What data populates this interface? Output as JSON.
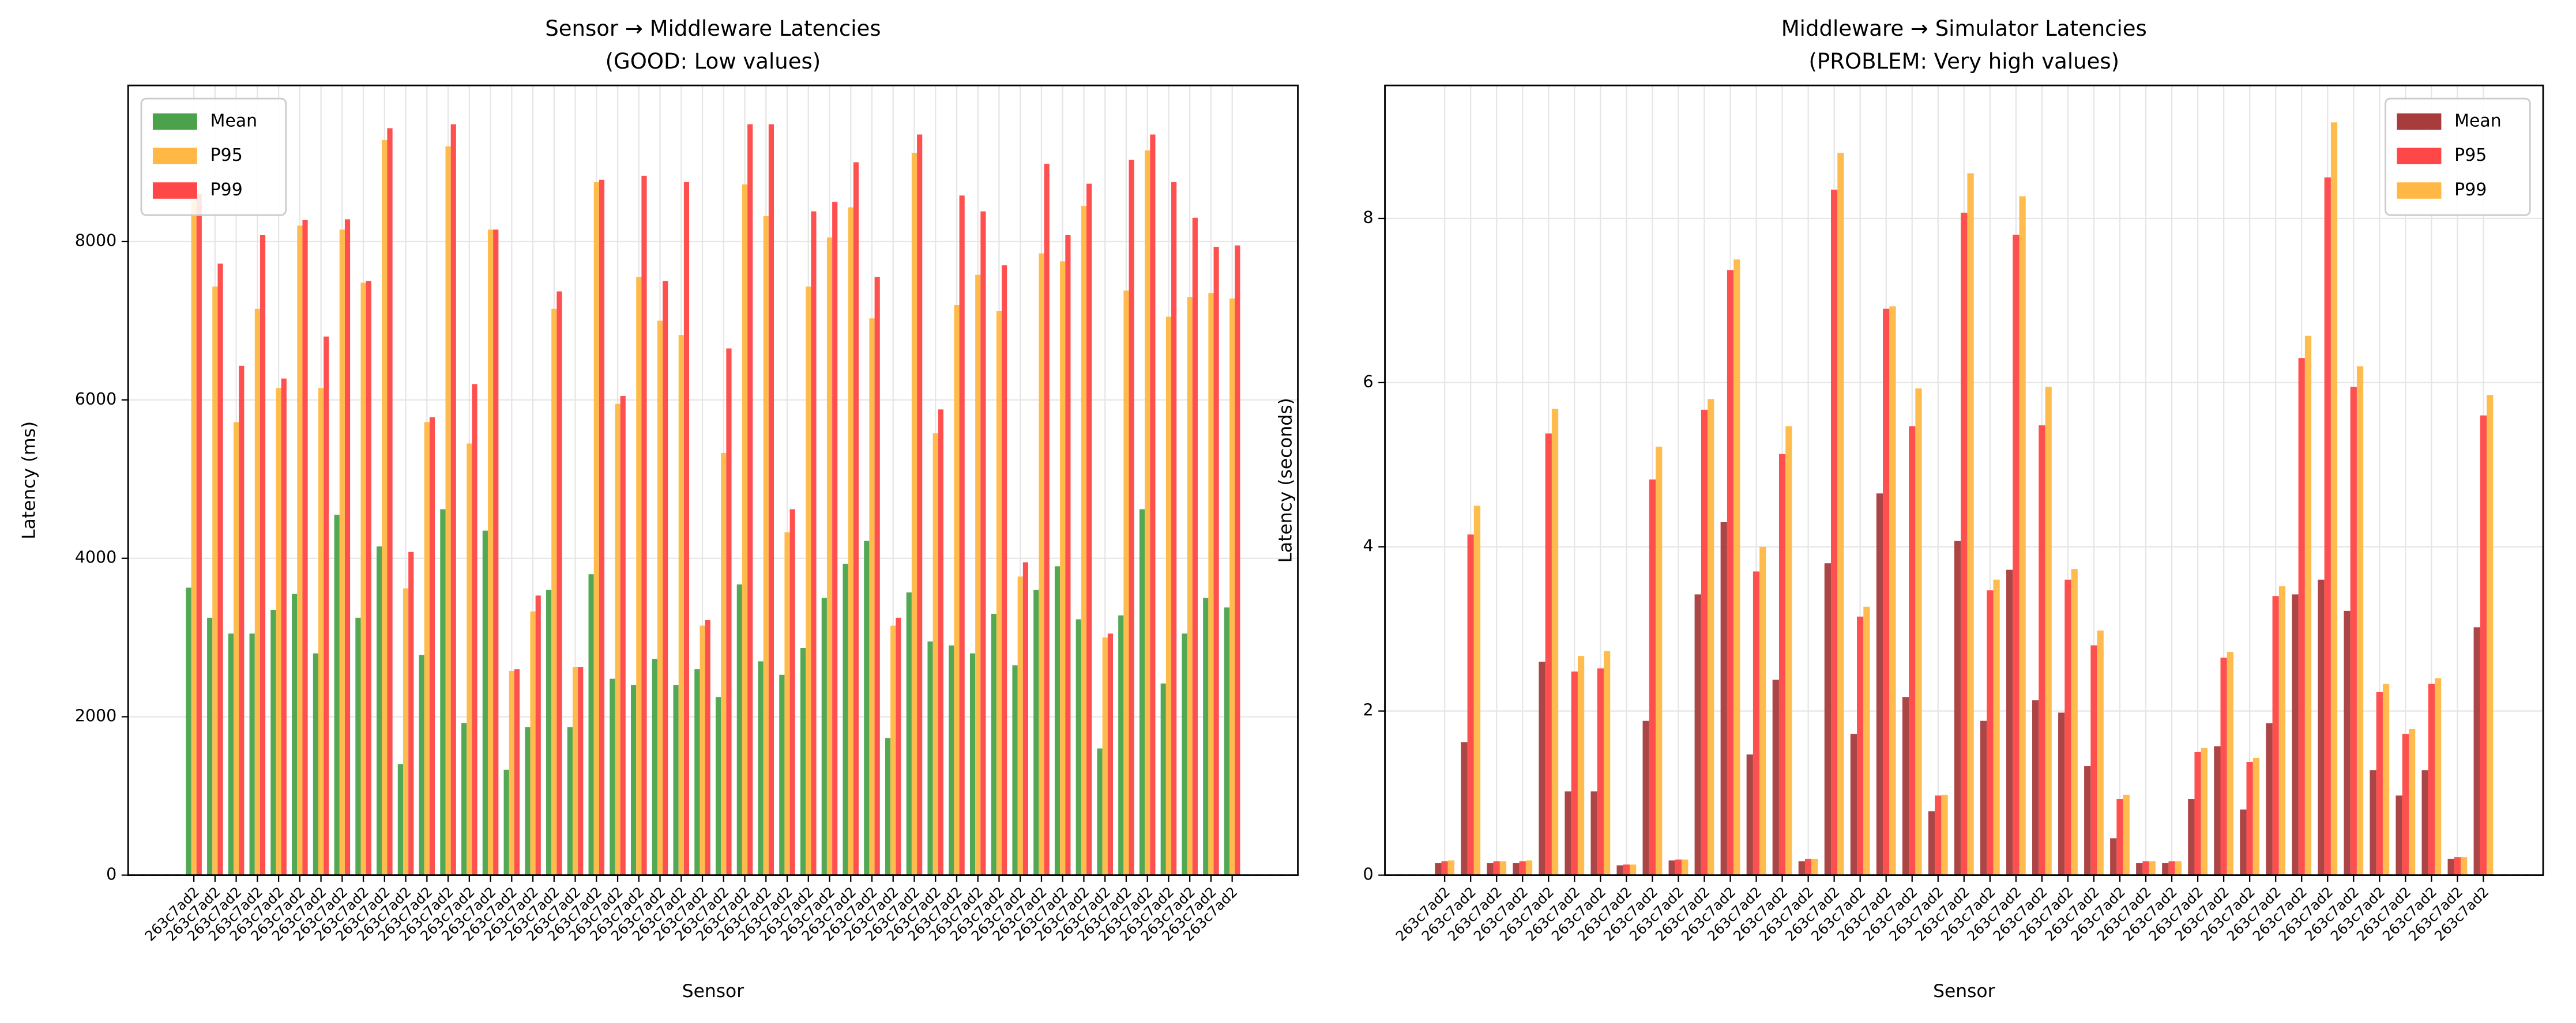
{
  "chart_data": [
    {
      "type": "bar",
      "title": "Sensor → Middleware Latencies",
      "subtitle": "(GOOD: Low values)",
      "x_label": "Sensor",
      "y_label": "Latency (ms)",
      "categories": [
        "263c7ad2",
        "263c7ad2",
        "263c7ad2",
        "263c7ad2",
        "263c7ad2",
        "263c7ad2",
        "263c7ad2",
        "263c7ad2",
        "263c7ad2",
        "263c7ad2",
        "263c7ad2",
        "263c7ad2",
        "263c7ad2",
        "263c7ad2",
        "263c7ad2",
        "263c7ad2",
        "263c7ad2",
        "263c7ad2",
        "263c7ad2",
        "263c7ad2",
        "263c7ad2",
        "263c7ad2",
        "263c7ad2",
        "263c7ad2",
        "263c7ad2",
        "263c7ad2",
        "263c7ad2",
        "263c7ad2",
        "263c7ad2",
        "263c7ad2",
        "263c7ad2",
        "263c7ad2",
        "263c7ad2",
        "263c7ad2",
        "263c7ad2",
        "263c7ad2",
        "263c7ad2",
        "263c7ad2",
        "263c7ad2",
        "263c7ad2",
        "263c7ad2",
        "263c7ad2",
        "263c7ad2",
        "263c7ad2",
        "263c7ad2",
        "263c7ad2",
        "263c7ad2",
        "263c7ad2",
        "263c7ad2",
        "263c7ad2"
      ],
      "series": [
        {
          "name": "Mean",
          "color": "#4aa34a",
          "values": [
            3630,
            3250,
            3050,
            3050,
            3350,
            3550,
            2800,
            4550,
            3250,
            4150,
            1400,
            2780,
            4620,
            1920,
            4350,
            1330,
            1870,
            3600,
            1870,
            3800,
            2480,
            2400,
            2730,
            2400,
            2600,
            2250,
            3670,
            2700,
            2530,
            2870,
            3500,
            3930,
            4220,
            1730,
            3570,
            2950,
            2900,
            2800,
            3300,
            2650,
            3600,
            3900,
            3230,
            1600,
            3280,
            4620,
            2420,
            3050,
            3500,
            3380
          ]
        },
        {
          "name": "P95",
          "color": "#ffb845",
          "values": [
            8500,
            7430,
            5720,
            7150,
            6150,
            8200,
            6150,
            8150,
            7480,
            9280,
            3620,
            5720,
            9200,
            5450,
            8150,
            2580,
            3330,
            7150,
            2630,
            8750,
            5950,
            7550,
            7000,
            6820,
            3150,
            5330,
            8720,
            8320,
            4330,
            7430,
            8050,
            8430,
            7030,
            3150,
            9120,
            5580,
            7200,
            7580,
            7120,
            3770,
            7850,
            7750,
            8450,
            3000,
            7380,
            9150,
            7050,
            7300,
            7350,
            7280
          ]
        },
        {
          "name": "P99",
          "color": "#ff4747",
          "values": [
            8600,
            7720,
            6430,
            8080,
            6270,
            8270,
            6800,
            8280,
            7500,
            9430,
            4080,
            5780,
            9480,
            6200,
            8150,
            2600,
            3530,
            7370,
            2630,
            8780,
            6050,
            8830,
            7500,
            8750,
            3220,
            6650,
            9480,
            9480,
            4620,
            8380,
            8500,
            9000,
            7550,
            3250,
            9350,
            5880,
            8580,
            8380,
            7700,
            3950,
            8980,
            8080,
            8730,
            3050,
            9030,
            9350,
            8750,
            8300,
            7930,
            7950
          ]
        }
      ],
      "ylim": [
        0,
        9970
      ],
      "yticks": [
        0,
        2000,
        4000,
        6000,
        8000
      ],
      "grid": true,
      "legend": "upper left"
    },
    {
      "type": "bar",
      "title": "Middleware → Simulator Latencies",
      "subtitle": "(PROBLEM: Very high values)",
      "x_label": "Sensor",
      "y_label": "Latency (seconds)",
      "categories": [
        "263c7ad2",
        "263c7ad2",
        "263c7ad2",
        "263c7ad2",
        "263c7ad2",
        "263c7ad2",
        "263c7ad2",
        "263c7ad2",
        "263c7ad2",
        "263c7ad2",
        "263c7ad2",
        "263c7ad2",
        "263c7ad2",
        "263c7ad2",
        "263c7ad2",
        "263c7ad2",
        "263c7ad2",
        "263c7ad2",
        "263c7ad2",
        "263c7ad2",
        "263c7ad2",
        "263c7ad2",
        "263c7ad2",
        "263c7ad2",
        "263c7ad2",
        "263c7ad2",
        "263c7ad2",
        "263c7ad2",
        "263c7ad2",
        "263c7ad2",
        "263c7ad2",
        "263c7ad2",
        "263c7ad2",
        "263c7ad2",
        "263c7ad2",
        "263c7ad2",
        "263c7ad2",
        "263c7ad2",
        "263c7ad2",
        "263c7ad2",
        "263c7ad2"
      ],
      "series": [
        {
          "name": "Mean",
          "color": "#a83c3c",
          "values": [
            0.15,
            1.62,
            0.15,
            0.15,
            2.6,
            1.02,
            1.02,
            0.12,
            1.88,
            0.18,
            3.42,
            4.3,
            1.47,
            2.38,
            0.17,
            3.8,
            1.72,
            4.65,
            2.17,
            0.78,
            4.07,
            1.88,
            3.72,
            2.13,
            1.98,
            1.33,
            0.45,
            0.15,
            0.15,
            0.93,
            1.57,
            0.8,
            1.85,
            3.42,
            3.6,
            3.22,
            1.28,
            0.97,
            1.28,
            0.2,
            3.02
          ]
        },
        {
          "name": "P95",
          "color": "#ff4747",
          "values": [
            0.17,
            4.15,
            0.17,
            0.17,
            5.38,
            2.48,
            2.52,
            0.13,
            4.82,
            0.19,
            5.67,
            7.37,
            3.7,
            5.13,
            0.2,
            8.35,
            3.15,
            6.9,
            5.47,
            0.97,
            8.07,
            3.47,
            7.8,
            5.48,
            3.6,
            2.8,
            0.93,
            0.17,
            0.17,
            1.5,
            2.65,
            1.38,
            3.4,
            6.3,
            8.5,
            5.95,
            2.23,
            1.72,
            2.33,
            0.22,
            5.6
          ]
        },
        {
          "name": "P99",
          "color": "#ffb845",
          "values": [
            0.18,
            4.5,
            0.17,
            0.18,
            5.68,
            2.67,
            2.73,
            0.13,
            5.22,
            0.19,
            5.8,
            7.5,
            4.0,
            5.47,
            0.2,
            8.8,
            3.27,
            6.93,
            5.93,
            0.98,
            8.55,
            3.6,
            8.27,
            5.95,
            3.73,
            2.98,
            0.98,
            0.17,
            0.17,
            1.55,
            2.72,
            1.43,
            3.52,
            6.57,
            9.17,
            6.2,
            2.33,
            1.78,
            2.4,
            0.22,
            5.85
          ]
        }
      ],
      "ylim": [
        0,
        9.62
      ],
      "yticks": [
        0,
        2,
        4,
        6,
        8
      ],
      "grid": true,
      "legend": "upper right"
    }
  ]
}
